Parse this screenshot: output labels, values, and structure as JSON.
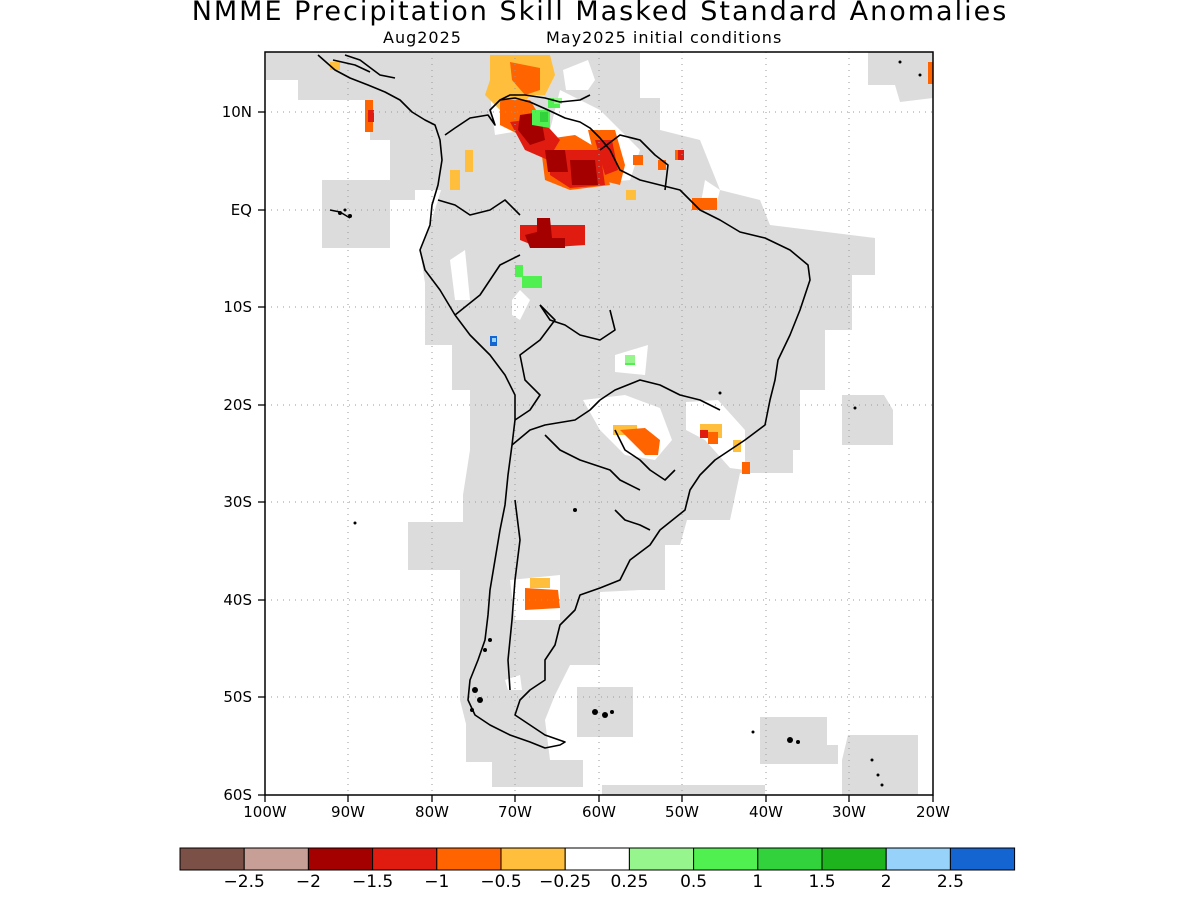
{
  "title": "NMME Precipitation Skill Masked Standard Anomalies",
  "subtitle_left": "Aug2025",
  "subtitle_right": "May2025 initial conditions",
  "axes": {
    "lat_labels": [
      "10N",
      "EQ",
      "10S",
      "20S",
      "30S",
      "40S",
      "50S",
      "60S"
    ],
    "lon_labels": [
      "100W",
      "90W",
      "80W",
      "70W",
      "60W",
      "50W",
      "40W",
      "30W",
      "20W"
    ]
  },
  "colors": {
    "masked_land": "#dcdcdc",
    "coastline": "#000000",
    "grid": "#9a9a9a"
  },
  "colorbar": {
    "colors": [
      "#7a5047",
      "#c89f97",
      "#a40000",
      "#e01c10",
      "#ff6400",
      "#ffbe3c",
      "#ffffff",
      "#96f58c",
      "#50f050",
      "#32d23c",
      "#1eb41e",
      "#96d2fa",
      "#1464d2"
    ],
    "labels": [
      "−2.5",
      "−2",
      "−1.5",
      "−1",
      "−0.5",
      "−0.25",
      "0.25",
      "0.5",
      "1",
      "1.5",
      "2",
      "2.5"
    ]
  }
}
